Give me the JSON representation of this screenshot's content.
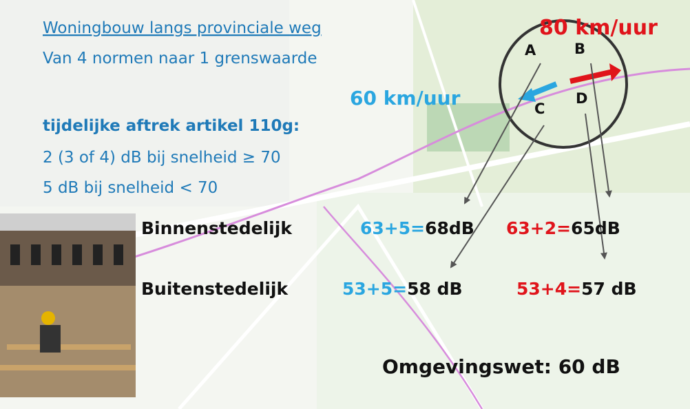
{
  "header": {
    "title": "Woningbouw langs provinciale weg",
    "subtitle": "Van 4 normen naar 1 grenswaarde"
  },
  "rules": {
    "heading": "tijdelijke aftrek artikel 110g:",
    "items": [
      "2 (3 of 4) dB bij snelheid ≥ 70",
      "5 dB bij snelheid < 70"
    ]
  },
  "speeds": {
    "high": "80 km/uur",
    "low": "60 km/uur"
  },
  "diagram_labels": [
    "A",
    "B",
    "C",
    "D"
  ],
  "rows": [
    {
      "label": "Binnenstedelijk",
      "cells": [
        {
          "formula": "63+5=",
          "result": "68dB"
        },
        {
          "formula": "63+2=",
          "result": "65dB"
        }
      ]
    },
    {
      "label": "Buitenstedelijk",
      "cells": [
        {
          "formula": "53+5=",
          "result": "58 dB"
        },
        {
          "formula": "53+4=",
          "result": "57 dB"
        }
      ]
    }
  ],
  "footer": "Omgevingswet: 60 dB"
}
